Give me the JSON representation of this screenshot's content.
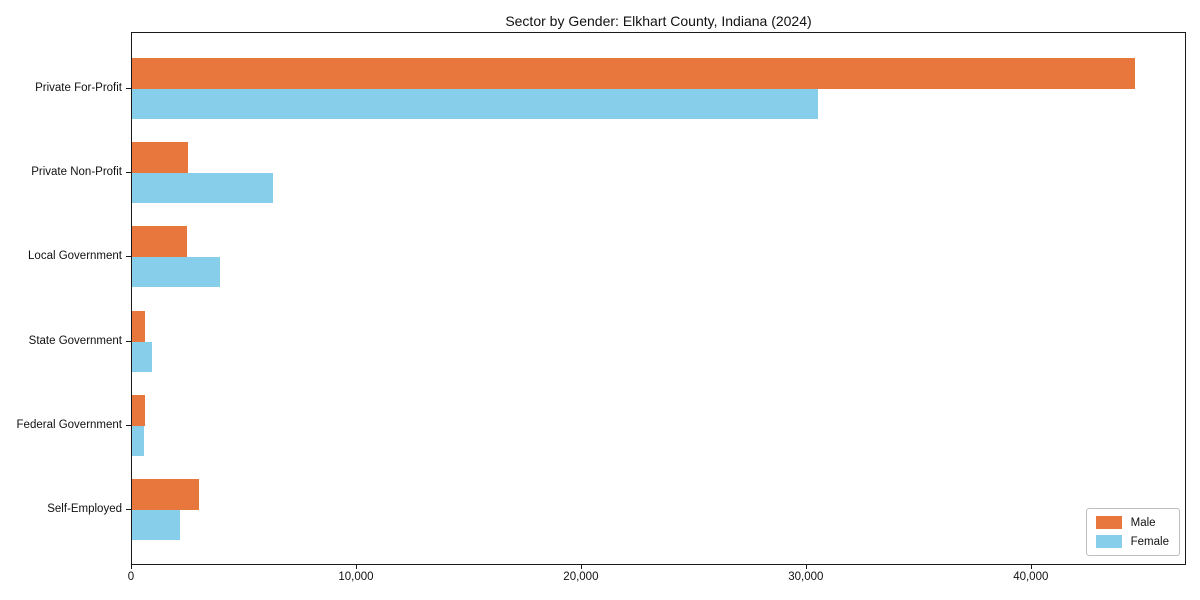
{
  "chart": {
    "title": "Sector by Gender: Elkhart County, Indiana (2024)"
  },
  "chart_data": {
    "type": "bar",
    "orientation": "horizontal",
    "title": "Sector by Gender: Elkhart County, Indiana (2024)",
    "categories": [
      "Private For-Profit",
      "Private Non-Profit",
      "Local Government",
      "State Government",
      "Federal Government",
      "Self-Employed"
    ],
    "series": [
      {
        "name": "Male",
        "color": "#e8773d",
        "values": [
          44600,
          2500,
          2450,
          580,
          580,
          3000
        ]
      },
      {
        "name": "Female",
        "color": "#87ceeb",
        "values": [
          30500,
          6250,
          3900,
          890,
          530,
          2150
        ]
      }
    ],
    "xlabel": "",
    "ylabel": "",
    "xlim": [
      0,
      46900
    ],
    "x_ticks": [
      0,
      10000,
      20000,
      30000,
      40000
    ],
    "x_tick_labels": [
      "0",
      "10,000",
      "20,000",
      "30,000",
      "40,000"
    ],
    "grid": false,
    "legend_position": "lower right",
    "legend": {
      "items": [
        {
          "label": "Male",
          "color": "#e8773d"
        },
        {
          "label": "Female",
          "color": "#87ceeb"
        }
      ]
    }
  }
}
